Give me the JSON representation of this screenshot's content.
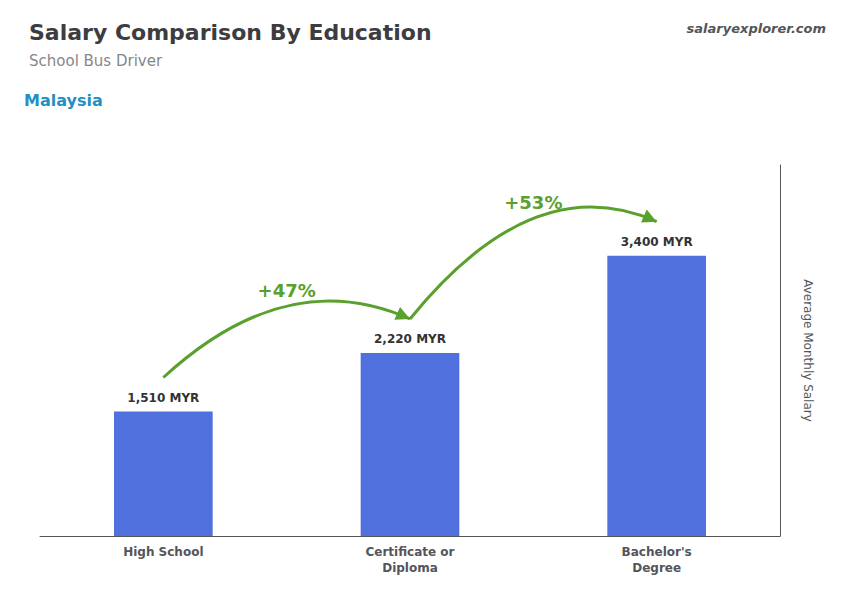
{
  "chart_data": {
    "type": "bar",
    "title": "Salary Comparison By Education",
    "subtitle": "School Bus Driver",
    "ylabel": "Average Monthly Salary",
    "categories": [
      "High School",
      "Certificate or\nDiploma",
      "Bachelor's\nDegree"
    ],
    "values": [
      1510,
      2220,
      3400
    ],
    "value_labels": [
      "1,510 MYR",
      "2,220 MYR",
      "3,400 MYR"
    ],
    "data_labels": true,
    "ylim": [
      0,
      4500
    ],
    "tick_labels": "x",
    "grid": false,
    "annotations": [
      {
        "text": "Malaysia"
      },
      {
        "text": "salaryexplorer.com"
      },
      {
        "text": "+47%",
        "arrow_from": "High School",
        "arrow_to": "Certificate or\nDiploma"
      },
      {
        "text": "+53%",
        "arrow_from": "Certificate or\nDiploma",
        "arrow_to": "Bachelor's\nDegree"
      }
    ]
  }
}
